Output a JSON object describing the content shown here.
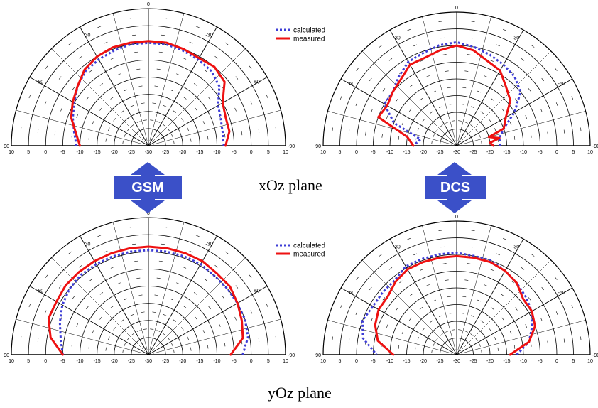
{
  "labels": {
    "xoz_plane": "xOz plane",
    "yoz_plane": "yOz plane",
    "gsm": "GSM",
    "dcs": "DCS"
  },
  "colors": {
    "calculated": "#3d3dd6",
    "measured": "#ee1111",
    "arrow_fill": "#3b50c8",
    "grid": "#000000"
  },
  "chart_data": [
    {
      "id": "gsm-xoz",
      "type": "polar",
      "band": "GSM",
      "plane": "xOz",
      "r_min": -30,
      "r_max": 10,
      "radial_ticks": [
        10,
        5,
        0,
        -5,
        -10,
        -15,
        -20,
        -25,
        -30
      ],
      "angle_ticks": [
        0,
        -30,
        -60,
        -90,
        30,
        60,
        90
      ],
      "legend": [
        "calculated",
        "measured"
      ],
      "series": [
        {
          "name": "calculated",
          "style": "dotted",
          "points": [
            [
              -90,
              -8
            ],
            [
              -80,
              -8
            ],
            [
              -70,
              -7.5
            ],
            [
              -60,
              -6.5
            ],
            [
              -50,
              -3
            ],
            [
              -40,
              -1.5
            ],
            [
              -30,
              -1
            ],
            [
              -20,
              -0.5
            ],
            [
              -10,
              0
            ],
            [
              0,
              0
            ],
            [
              10,
              0
            ],
            [
              20,
              -0.5
            ],
            [
              30,
              -1
            ],
            [
              40,
              -1.5
            ],
            [
              50,
              -3
            ],
            [
              60,
              -5
            ],
            [
              70,
              -6.5
            ],
            [
              80,
              -8
            ],
            [
              90,
              -9
            ]
          ]
        },
        {
          "name": "measured",
          "style": "solid",
          "points": [
            [
              -90,
              -7.5
            ],
            [
              -80,
              -6
            ],
            [
              -70,
              -6
            ],
            [
              -60,
              -5
            ],
            [
              -50,
              -1
            ],
            [
              -40,
              0
            ],
            [
              -30,
              -0.5
            ],
            [
              -20,
              0
            ],
            [
              -10,
              0.5
            ],
            [
              0,
              0.5
            ],
            [
              10,
              0.5
            ],
            [
              20,
              0.5
            ],
            [
              30,
              0
            ],
            [
              40,
              -1
            ],
            [
              50,
              -3
            ],
            [
              60,
              -4.5
            ],
            [
              70,
              -6
            ],
            [
              80,
              -8.5
            ],
            [
              90,
              -10
            ]
          ]
        }
      ]
    },
    {
      "id": "dcs-xoz",
      "type": "polar",
      "band": "DCS",
      "plane": "xOz",
      "r_min": -30,
      "r_max": 10,
      "radial_ticks": [
        10,
        5,
        0,
        -5,
        -10,
        -15,
        -20,
        -25,
        -30
      ],
      "angle_ticks": [
        0,
        -30,
        -60,
        -90,
        30,
        60,
        90
      ],
      "legend": [
        "calculated",
        "measured"
      ],
      "series": [
        {
          "name": "calculated",
          "style": "dotted",
          "points": [
            [
              -90,
              -17
            ],
            [
              -80,
              -17
            ],
            [
              -70,
              -15
            ],
            [
              -60,
              -10
            ],
            [
              -50,
              -5
            ],
            [
              -40,
              -3
            ],
            [
              -30,
              -2
            ],
            [
              -20,
              -1
            ],
            [
              -10,
              0
            ],
            [
              0,
              1
            ],
            [
              10,
              0.5
            ],
            [
              20,
              -0.5
            ],
            [
              30,
              -1
            ],
            [
              40,
              -3
            ],
            [
              50,
              -5
            ],
            [
              60,
              -5
            ],
            [
              70,
              -10
            ],
            [
              80,
              -19
            ],
            [
              90,
              -17
            ]
          ]
        },
        {
          "name": "measured",
          "style": "solid",
          "points": [
            [
              -90,
              -19
            ],
            [
              -85,
              -20
            ],
            [
              -80,
              -17
            ],
            [
              -75,
              -20
            ],
            [
              -70,
              -15
            ],
            [
              -60,
              -13
            ],
            [
              -50,
              -9
            ],
            [
              -40,
              -7
            ],
            [
              -30,
              -4
            ],
            [
              -20,
              -3
            ],
            [
              -10,
              -1
            ],
            [
              0,
              0
            ],
            [
              10,
              -1
            ],
            [
              20,
              -2
            ],
            [
              30,
              -2
            ],
            [
              40,
              -4
            ],
            [
              50,
              -5
            ],
            [
              60,
              -6
            ],
            [
              70,
              -5
            ],
            [
              80,
              -15
            ],
            [
              90,
              -17
            ]
          ]
        }
      ]
    },
    {
      "id": "gsm-yoz",
      "type": "polar",
      "band": "GSM",
      "plane": "yOz",
      "r_min": -30,
      "r_max": 10,
      "radial_ticks": [
        10,
        5,
        0,
        -5,
        -10,
        -15,
        -20,
        -25,
        -30
      ],
      "angle_ticks": [
        0,
        -30,
        -60,
        -90,
        30,
        60,
        90
      ],
      "legend": [
        "calculated",
        "measured"
      ],
      "series": [
        {
          "name": "calculated",
          "style": "dotted",
          "points": [
            [
              -90,
              -2.5
            ],
            [
              -80,
              -0.5
            ],
            [
              -70,
              0
            ],
            [
              -60,
              0
            ],
            [
              -50,
              0
            ],
            [
              -40,
              0
            ],
            [
              -30,
              0.5
            ],
            [
              -20,
              0.5
            ],
            [
              -10,
              0.5
            ],
            [
              0,
              0.5
            ],
            [
              10,
              0.5
            ],
            [
              20,
              0.5
            ],
            [
              30,
              0.5
            ],
            [
              40,
              0.5
            ],
            [
              50,
              0
            ],
            [
              60,
              -1
            ],
            [
              70,
              -2.5
            ],
            [
              80,
              -4
            ],
            [
              90,
              -5
            ]
          ]
        },
        {
          "name": "measured",
          "style": "solid",
          "points": [
            [
              -90,
              -6
            ],
            [
              -80,
              -2
            ],
            [
              -70,
              -1
            ],
            [
              -60,
              0
            ],
            [
              -50,
              1
            ],
            [
              -40,
              1
            ],
            [
              -30,
              1.5
            ],
            [
              -20,
              1.5
            ],
            [
              -10,
              1.5
            ],
            [
              0,
              1.5
            ],
            [
              10,
              1.5
            ],
            [
              20,
              1.5
            ],
            [
              30,
              1.5
            ],
            [
              40,
              1.5
            ],
            [
              50,
              1.5
            ],
            [
              60,
              1
            ],
            [
              70,
              1
            ],
            [
              80,
              -1
            ],
            [
              90,
              -5
            ]
          ]
        }
      ]
    },
    {
      "id": "dcs-yoz",
      "type": "polar",
      "band": "DCS",
      "plane": "yOz",
      "r_min": -30,
      "r_max": 10,
      "radial_ticks": [
        10,
        5,
        0,
        -5,
        -10,
        -15,
        -20,
        -25,
        -30
      ],
      "angle_ticks": [
        0,
        -30,
        -60,
        -90,
        30,
        60,
        90
      ],
      "legend": [
        "calculated",
        "measured"
      ],
      "series": [
        {
          "name": "calculated",
          "style": "dotted",
          "points": [
            [
              -90,
              -12
            ],
            [
              -80,
              -8
            ],
            [
              -70,
              -6
            ],
            [
              -60,
              -4
            ],
            [
              -50,
              -3
            ],
            [
              -40,
              -2
            ],
            [
              -30,
              -1
            ],
            [
              -20,
              0
            ],
            [
              -10,
              0
            ],
            [
              0,
              0.5
            ],
            [
              10,
              0.5
            ],
            [
              20,
              0.5
            ],
            [
              30,
              0.5
            ],
            [
              40,
              -1
            ],
            [
              50,
              -1
            ],
            [
              60,
              -1
            ],
            [
              70,
              0
            ],
            [
              80,
              -1.5
            ],
            [
              90,
              -6
            ]
          ]
        },
        {
          "name": "measured",
          "style": "solid",
          "points": [
            [
              -90,
              -14
            ],
            [
              -80,
              -8
            ],
            [
              -70,
              -5
            ],
            [
              -60,
              -4
            ],
            [
              -50,
              -4
            ],
            [
              -40,
              -2
            ],
            [
              -30,
              -1
            ],
            [
              -20,
              -0.5
            ],
            [
              -10,
              -0.5
            ],
            [
              0,
              -0.5
            ],
            [
              10,
              -0.5
            ],
            [
              20,
              -0.5
            ],
            [
              30,
              -0.5
            ],
            [
              40,
              -1.5
            ],
            [
              50,
              -3
            ],
            [
              60,
              -3
            ],
            [
              70,
              -4
            ],
            [
              80,
              -6
            ],
            [
              90,
              -11
            ]
          ]
        }
      ]
    }
  ]
}
